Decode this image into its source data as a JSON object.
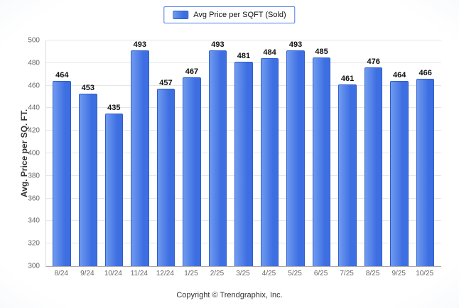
{
  "legend": {
    "label": "Avg Price per SQFT (Sold)"
  },
  "footer": {
    "text": "Copyright © Trendgraphix, Inc."
  },
  "chart_data": {
    "type": "bar",
    "categories": [
      "8/24",
      "9/24",
      "10/24",
      "11/24",
      "12/24",
      "1/25",
      "2/25",
      "3/25",
      "4/25",
      "5/25",
      "6/25",
      "7/25",
      "8/25",
      "9/25",
      "10/25"
    ],
    "values": [
      464,
      453,
      435,
      493,
      457,
      467,
      493,
      481,
      484,
      493,
      485,
      461,
      476,
      464,
      466
    ],
    "title": "",
    "xlabel": "",
    "ylabel": "Avg. Price per SQ. FT.",
    "ylim": [
      300,
      500
    ],
    "ytick_step": 20,
    "grid": true,
    "legend_position": "top-center",
    "legend_label": "Avg Price per SQFT (Sold)",
    "bar_color": "#3d6ee2"
  }
}
